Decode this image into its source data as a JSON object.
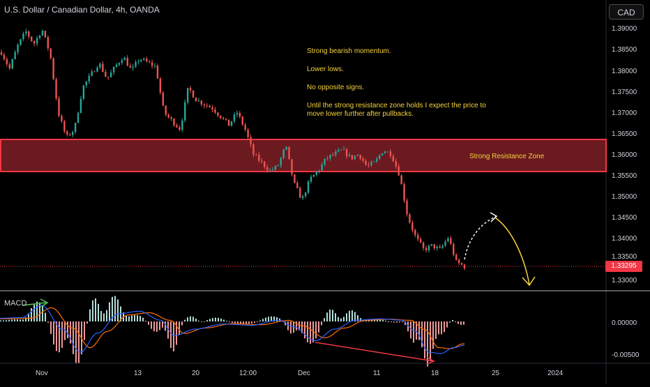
{
  "header": {
    "symbol_title": "U.S. Dollar / Canadian Dollar, 4h, OANDA",
    "currency_button": "CAD"
  },
  "colors": {
    "background": "#000000",
    "up_candle": "#26a69a",
    "down_candle": "#ef5350",
    "zone_fill": "#6b1a20",
    "zone_border": "#f23645",
    "annotation": "#f7d33b",
    "macd_line": "#2962ff",
    "signal_line": "#ff6d00",
    "price_tag": "#f23645"
  },
  "annotations": {
    "notes": [
      "Strong bearish momentum.",
      "Lower lows.",
      "No opposite signs.",
      "Until the strong resistance zone holds I expect the price to move lower further after pullbacks."
    ],
    "zone_label": "Strong Resistance Zone"
  },
  "price_axis": {
    "ticks": [
      "1.39000",
      "1.38500",
      "1.38000",
      "1.37500",
      "1.37000",
      "1.36500",
      "1.36000",
      "1.35500",
      "1.35000",
      "1.34500",
      "1.34000",
      "1.33500",
      "1.33000"
    ],
    "current_price": "1.33295"
  },
  "macd_axis": {
    "label": "MACD",
    "ticks": [
      "0.00000",
      "-0.00500"
    ]
  },
  "time_axis": {
    "ticks": [
      "Nov",
      "13",
      "20",
      "12:00",
      "Dec",
      "11",
      "18",
      "25",
      "2024"
    ]
  },
  "chart_data": {
    "type": "candlestick",
    "price_range": [
      1.3283,
      1.3925
    ],
    "resistance_zone": [
      1.3556,
      1.3633
    ],
    "current_price": 1.33295,
    "macd_range": [
      -0.0058,
      0.0031
    ],
    "grid": false,
    "price_path": [
      1.3845,
      1.3805,
      1.386,
      1.3895,
      1.3865,
      1.39,
      1.384,
      1.37,
      1.364,
      1.366,
      1.376,
      1.379,
      1.382,
      1.378,
      1.381,
      1.3835,
      1.38,
      1.383,
      1.382,
      1.381,
      1.37,
      1.368,
      1.366,
      1.376,
      1.373,
      1.372,
      1.371,
      1.369,
      1.367,
      1.37,
      1.366,
      1.36,
      1.358,
      1.356,
      1.357,
      1.362,
      1.353,
      1.349,
      1.354,
      1.356,
      1.359,
      1.36,
      1.361,
      1.359,
      1.36,
      1.357,
      1.358,
      1.361,
      1.36,
      1.355,
      1.345,
      1.34,
      1.337,
      1.338,
      1.337,
      1.34,
      1.334,
      1.333
    ]
  }
}
